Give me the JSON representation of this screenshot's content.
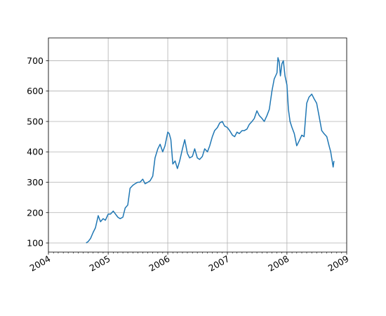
{
  "chart_data": {
    "type": "line",
    "title": "",
    "xlabel": "",
    "ylabel": "",
    "xlim": [
      "2004-01-01",
      "2009-01-01"
    ],
    "ylim": [
      70,
      775
    ],
    "grid": true,
    "x_tick_labels": [
      "2004",
      "2005",
      "2006",
      "2007",
      "2008",
      "2009"
    ],
    "y_ticks": [
      100,
      200,
      300,
      400,
      500,
      600,
      700
    ],
    "y_tick_labels": [
      "100",
      "200",
      "300",
      "400",
      "500",
      "600",
      "700"
    ],
    "line_color": "#1f77b4",
    "grid_color": "#b0b0b0",
    "series": [
      {
        "x": [
          "2004-08-19",
          "2004-09-01",
          "2004-09-15",
          "2004-10-01",
          "2004-10-15",
          "2004-11-01",
          "2004-11-15",
          "2004-12-01",
          "2004-12-15",
          "2005-01-01",
          "2005-01-15",
          "2005-02-01",
          "2005-02-15",
          "2005-03-01",
          "2005-03-15",
          "2005-04-01",
          "2005-04-15",
          "2005-05-01",
          "2005-05-15",
          "2005-06-01",
          "2005-06-15",
          "2005-07-01",
          "2005-07-15",
          "2005-08-01",
          "2005-08-15",
          "2005-09-01",
          "2005-09-15",
          "2005-10-01",
          "2005-10-15",
          "2005-11-01",
          "2005-11-15",
          "2005-12-01",
          "2005-12-15",
          "2006-01-01",
          "2006-01-10",
          "2006-01-20",
          "2006-02-01",
          "2006-02-15",
          "2006-03-01",
          "2006-03-15",
          "2006-04-01",
          "2006-04-15",
          "2006-05-01",
          "2006-05-15",
          "2006-06-01",
          "2006-06-15",
          "2006-07-01",
          "2006-07-15",
          "2006-08-01",
          "2006-08-15",
          "2006-09-01",
          "2006-09-15",
          "2006-10-01",
          "2006-10-15",
          "2006-11-01",
          "2006-11-15",
          "2006-12-01",
          "2006-12-15",
          "2007-01-01",
          "2007-01-15",
          "2007-02-01",
          "2007-02-15",
          "2007-03-01",
          "2007-03-15",
          "2007-04-01",
          "2007-04-15",
          "2007-05-01",
          "2007-05-15",
          "2007-06-01",
          "2007-06-15",
          "2007-07-01",
          "2007-07-15",
          "2007-08-01",
          "2007-08-15",
          "2007-09-01",
          "2007-09-15",
          "2007-10-01",
          "2007-10-15",
          "2007-11-01",
          "2007-11-07",
          "2007-11-15",
          "2007-11-22",
          "2007-12-01",
          "2007-12-10",
          "2007-12-20",
          "2008-01-01",
          "2008-01-10",
          "2008-01-20",
          "2008-02-01",
          "2008-02-15",
          "2008-03-01",
          "2008-03-15",
          "2008-04-01",
          "2008-04-15",
          "2008-05-01",
          "2008-05-15",
          "2008-06-01",
          "2008-06-15",
          "2008-07-01",
          "2008-07-15",
          "2008-08-01",
          "2008-08-15",
          "2008-09-01",
          "2008-09-15",
          "2008-09-25",
          "2008-10-01",
          "2008-10-10",
          "2008-10-15"
        ],
        "y": [
          100,
          105,
          115,
          135,
          150,
          190,
          170,
          180,
          175,
          195,
          195,
          205,
          195,
          185,
          180,
          185,
          215,
          225,
          280,
          290,
          295,
          300,
          300,
          310,
          295,
          300,
          305,
          320,
          380,
          410,
          425,
          400,
          420,
          465,
          460,
          440,
          360,
          370,
          345,
          370,
          410,
          440,
          395,
          380,
          385,
          410,
          380,
          375,
          385,
          410,
          400,
          420,
          450,
          470,
          480,
          495,
          500,
          485,
          480,
          470,
          455,
          450,
          465,
          460,
          470,
          470,
          475,
          490,
          500,
          510,
          535,
          520,
          510,
          500,
          520,
          540,
          600,
          640,
          660,
          710,
          695,
          650,
          690,
          700,
          650,
          620,
          540,
          500,
          480,
          460,
          420,
          435,
          455,
          450,
          560,
          580,
          590,
          575,
          560,
          520,
          470,
          460,
          450,
          420,
          400,
          380,
          350,
          370
        ]
      }
    ]
  }
}
